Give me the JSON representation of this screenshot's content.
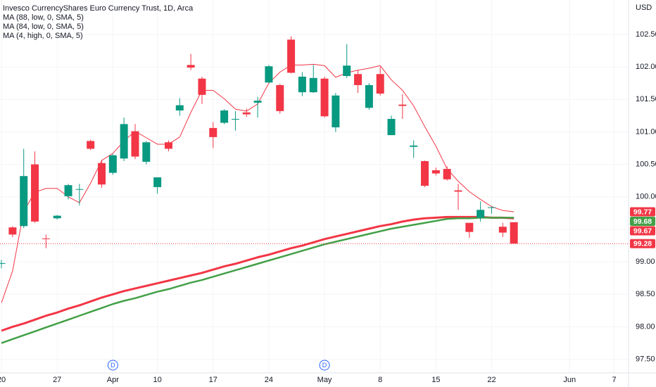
{
  "chart_data": {
    "type": "candlestick",
    "title": "Invesco CurrencyShares Euro Currency Trust, 1D, Arca",
    "currency": "USD",
    "up_color": "#089981",
    "down_color": "#f23645",
    "x": [
      0,
      1,
      2,
      3,
      4,
      5,
      6,
      7,
      8,
      9,
      10,
      11,
      12,
      13,
      14,
      15,
      16,
      17,
      18,
      19,
      20,
      21,
      22,
      23,
      24,
      25,
      26,
      27,
      28,
      29,
      30,
      31,
      32,
      33,
      34,
      35,
      36,
      37,
      38,
      39,
      40,
      41,
      42,
      43,
      44,
      45,
      46
    ],
    "open": [
      98.97,
      99.53,
      99.55,
      100.5,
      99.36,
      99.67,
      100.01,
      100.11,
      100.86,
      100.52,
      100.37,
      100.59,
      101.01,
      100.54,
      100.15,
      100.84,
      101.33,
      102.03,
      101.82,
      101.06,
      101.14,
      101.19,
      101.3,
      101.45,
      101.76,
      101.72,
      102.42,
      101.61,
      101.61,
      101.82,
      101.07,
      101.86,
      101.89,
      101.37,
      101.89,
      100.95,
      101.42,
      100.77,
      100.55,
      100.41,
      100.43,
      100.1,
      99.6,
      99.68,
      99.83,
      99.54,
      99.61
    ],
    "high": [
      99.03,
      99.55,
      100.74,
      100.7,
      99.42,
      99.72,
      100.2,
      100.2,
      100.88,
      100.57,
      100.66,
      101.22,
      101.12,
      100.86,
      100.3,
      100.87,
      101.52,
      102.2,
      101.85,
      101.15,
      101.35,
      101.32,
      101.36,
      101.54,
      102.03,
      101.74,
      102.47,
      101.92,
      102.03,
      101.85,
      101.6,
      102.35,
      101.95,
      101.75,
      102.0,
      101.25,
      101.58,
      100.87,
      100.56,
      100.45,
      100.47,
      100.2,
      99.6,
      99.93,
      99.85,
      99.6,
      99.61
    ],
    "low": [
      98.9,
      99.38,
      99.52,
      99.6,
      99.21,
      99.65,
      99.96,
      99.87,
      100.72,
      100.14,
      100.34,
      100.55,
      100.58,
      100.5,
      100.05,
      100.7,
      101.25,
      101.95,
      101.43,
      100.75,
      101.12,
      101.02,
      101.23,
      101.22,
      101.75,
      101.28,
      101.9,
      101.55,
      101.6,
      101.22,
      101.0,
      101.83,
      101.6,
      101.34,
      101.56,
      100.95,
      101.2,
      100.6,
      100.15,
      100.33,
      100.25,
      99.8,
      99.37,
      99.62,
      99.74,
      99.38,
      99.28
    ],
    "close": [
      98.98,
      99.42,
      100.32,
      99.62,
      99.35,
      99.71,
      100.18,
      100.12,
      100.74,
      100.19,
      100.64,
      101.12,
      100.62,
      100.84,
      100.3,
      100.74,
      101.41,
      101.99,
      101.57,
      100.92,
      101.33,
      101.2,
      101.27,
      101.48,
      102.01,
      101.32,
      101.91,
      101.85,
      101.83,
      101.24,
      101.56,
      102.02,
      101.72,
      101.72,
      101.59,
      101.2,
      101.4,
      100.79,
      100.17,
      100.36,
      100.27,
      100.08,
      99.46,
      99.8,
      99.84,
      99.45,
      99.28
    ],
    "series": [
      {
        "name": "MA (88, low, 0, SMA, 5)",
        "color": "#f23645",
        "values": [
          97.94,
          98.0,
          98.05,
          98.11,
          98.17,
          98.22,
          98.28,
          98.33,
          98.39,
          98.45,
          98.5,
          98.55,
          98.59,
          98.63,
          98.67,
          98.71,
          98.75,
          98.79,
          98.83,
          98.88,
          98.93,
          98.97,
          99.02,
          99.07,
          99.11,
          99.16,
          99.21,
          99.25,
          99.3,
          99.35,
          99.39,
          99.43,
          99.47,
          99.51,
          99.55,
          99.58,
          99.62,
          99.65,
          99.67,
          99.68,
          99.69,
          99.69,
          99.69,
          99.69,
          99.68,
          99.68,
          99.67
        ]
      },
      {
        "name": "MA (84, low, 0, SMA, 5)",
        "color": "#43a047",
        "values": [
          97.75,
          97.81,
          97.87,
          97.93,
          97.99,
          98.05,
          98.11,
          98.17,
          98.23,
          98.29,
          98.35,
          98.4,
          98.44,
          98.49,
          98.54,
          98.58,
          98.63,
          98.68,
          98.72,
          98.77,
          98.82,
          98.87,
          98.92,
          98.97,
          99.02,
          99.07,
          99.12,
          99.17,
          99.22,
          99.27,
          99.31,
          99.35,
          99.39,
          99.43,
          99.47,
          99.51,
          99.54,
          99.57,
          99.6,
          99.63,
          99.66,
          99.67,
          99.67,
          99.68,
          99.68,
          99.68,
          99.68
        ]
      },
      {
        "name": "MA (4, high, 0, SMA, 5)",
        "color": "#f23645",
        "values": [
          98.37,
          98.86,
          99.78,
          100.07,
          100.13,
          100.13,
          100.0,
          99.91,
          100.21,
          100.56,
          100.67,
          100.86,
          101.01,
          100.91,
          100.81,
          100.81,
          100.92,
          101.3,
          101.64,
          101.64,
          101.51,
          101.35,
          101.32,
          101.43,
          101.75,
          101.92,
          102.03,
          102.03,
          102.04,
          102.02,
          101.84,
          101.91,
          101.95,
          101.98,
          102.02,
          101.8,
          101.64,
          101.4,
          101.08,
          100.78,
          100.43,
          100.24,
          100.08,
          99.96,
          99.85,
          99.79,
          99.77
        ]
      }
    ],
    "markers": [
      {
        "x": 10,
        "label": "D"
      },
      {
        "x": 29,
        "label": "D"
      }
    ],
    "xlim": [
      -0.13,
      56.29
    ],
    "ylim": [
      97.29,
      103.03
    ],
    "xticks": [
      {
        "value": 0,
        "label": "20"
      },
      {
        "value": 5,
        "label": "27"
      },
      {
        "value": 10,
        "label": "Apr"
      },
      {
        "value": 14,
        "label": "10"
      },
      {
        "value": 19,
        "label": "17"
      },
      {
        "value": 24,
        "label": "24"
      },
      {
        "value": 29,
        "label": "May"
      },
      {
        "value": 34,
        "label": "8"
      },
      {
        "value": 39,
        "label": "15"
      },
      {
        "value": 44,
        "label": "22"
      },
      {
        "value": 51,
        "label": "Jun"
      },
      {
        "value": 55,
        "label": "7"
      }
    ],
    "yticks": [
      {
        "value": 97.5,
        "label": "97.50"
      },
      {
        "value": 98,
        "label": "98.00"
      },
      {
        "value": 98.5,
        "label": "98.50"
      },
      {
        "value": 99,
        "label": "99.00"
      },
      {
        "value": 99.5,
        "label": "99.50"
      },
      {
        "value": 100,
        "label": "100.00"
      },
      {
        "value": 100.5,
        "label": "100.50"
      },
      {
        "value": 101,
        "label": "101.00"
      },
      {
        "value": 101.5,
        "label": "101.50"
      },
      {
        "value": 102,
        "label": "102.00"
      },
      {
        "value": 102.5,
        "label": "102.50"
      }
    ],
    "last_price_line": true
  }
}
